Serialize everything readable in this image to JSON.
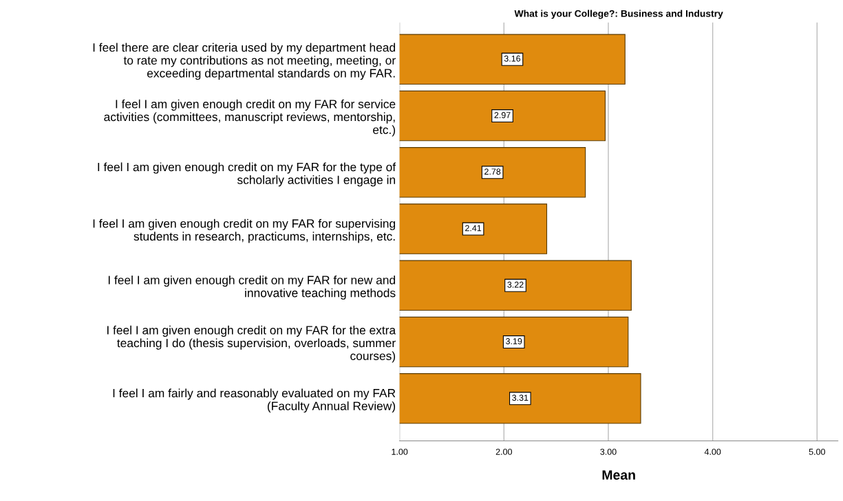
{
  "chart_data": {
    "type": "bar",
    "orientation": "horizontal",
    "title": "What is your College?: Business and Industry",
    "xlabel": "Mean",
    "categories": [
      "I feel there are clear criteria used by my department head\nto rate my contributions as not meeting, meeting, or\nexceeding departmental standards on my FAR.",
      "I feel I am given enough credit on my FAR for service\nactivities (committees, manuscript reviews, mentorship,\netc.)",
      "I feel I am given enough credit on my FAR for the type of\nscholarly activities I engage in",
      "I feel I am given enough credit on my FAR for supervising\nstudents in research, practicums, internships, etc.",
      "I feel I am given enough credit on my FAR for new and\ninnovative teaching methods",
      "I feel I am given enough credit on my FAR for the extra\nteaching I do (thesis supervision, overloads, summer\ncourses)",
      "I feel I am fairly and reasonably evaluated on my FAR\n(Faculty Annual Review)"
    ],
    "values": [
      3.16,
      2.97,
      2.78,
      2.41,
      3.22,
      3.19,
      3.31
    ],
    "color": "#e08b0e",
    "data_labels": true,
    "grid": "x",
    "xlim": [
      1,
      5.2
    ],
    "xticks": [
      {
        "value": 1,
        "label": "1.00"
      },
      {
        "value": 2,
        "label": "2.00"
      },
      {
        "value": 3,
        "label": "3.00"
      },
      {
        "value": 4,
        "label": "4.00"
      },
      {
        "value": 5,
        "label": "5.00"
      }
    ]
  }
}
